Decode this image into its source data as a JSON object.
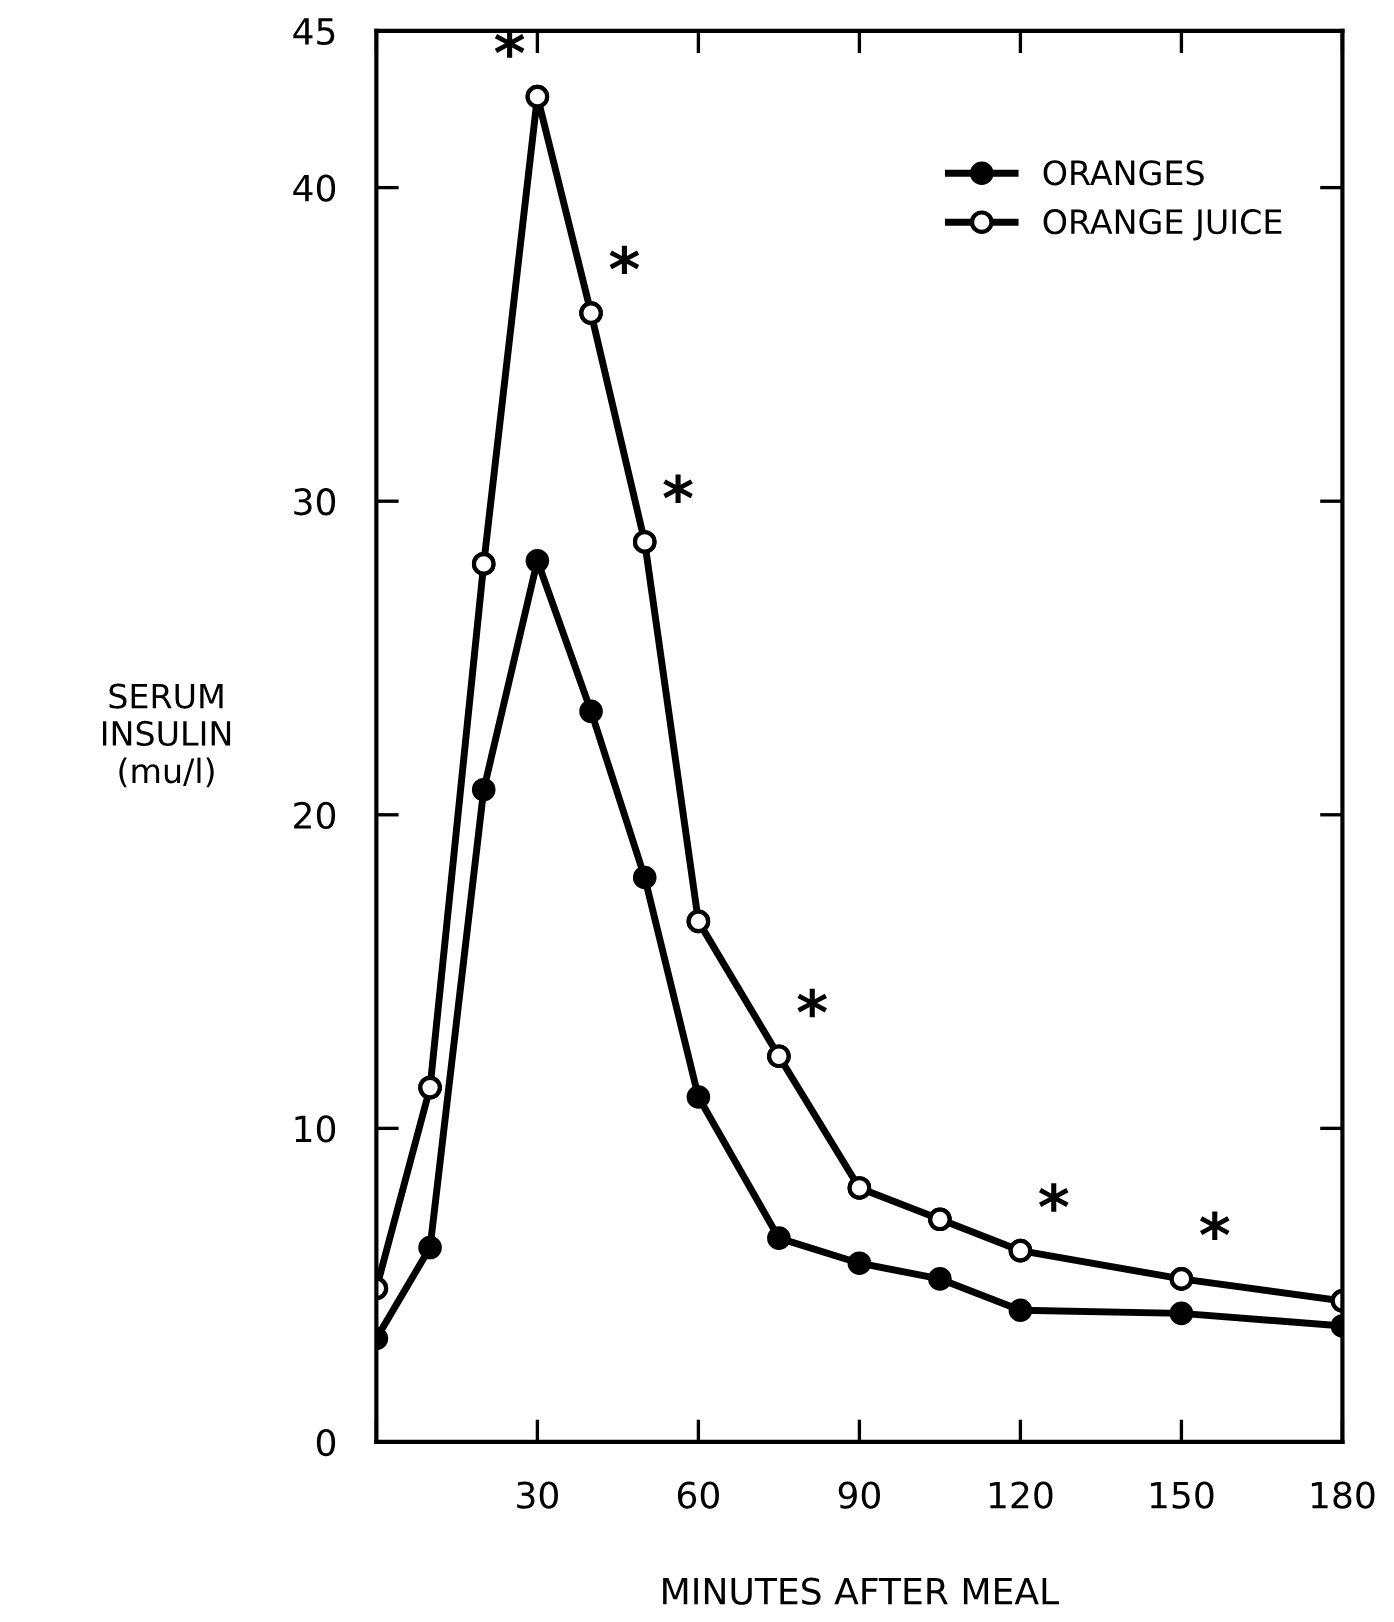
{
  "chart_data": {
    "type": "line",
    "xlabel": "MINUTES AFTER MEAL",
    "ylabel": "SERUM\nINSULIN\n(mu/l)",
    "x": [
      0,
      10,
      20,
      30,
      40,
      50,
      60,
      75,
      90,
      105,
      120,
      150,
      180
    ],
    "series": [
      {
        "name": "ORANGES",
        "color": "#000000",
        "values": [
          3.3,
          6.2,
          20.8,
          28.1,
          23.3,
          18.0,
          11.0,
          6.5,
          5.7,
          5.2,
          4.2,
          4.1,
          3.7
        ]
      },
      {
        "name": "ORANGE JUICE",
        "color": "#000000",
        "colors": [
          "#ffffff",
          "#ffffff",
          "#ffffff",
          "#ffffff",
          "#ffffff",
          "#ffffff",
          "#ffffff",
          "#ffffff",
          "#ffffff",
          "#ffffff",
          "#ffffff",
          "#ffffff",
          "#ffffff"
        ],
        "values": [
          4.9,
          11.3,
          28.0,
          42.9,
          36.0,
          28.7,
          16.6,
          12.3,
          8.1,
          7.1,
          6.1,
          5.2,
          4.5
        ]
      }
    ],
    "xlim": [
      0,
      180
    ],
    "xticks": [
      {
        "value": 0,
        "label": null
      },
      30,
      60,
      90,
      120,
      150,
      180
    ],
    "ylim": [
      0,
      45
    ],
    "yticks": [
      0,
      10,
      20,
      30,
      40,
      45
    ],
    "marker": "circle",
    "line_style": "solid",
    "grid": false,
    "legend": "top right",
    "annotations": [
      {
        "text": "*",
        "x": 30,
        "y": 42.9
      },
      {
        "text": "*",
        "x": 40,
        "y": 36.0
      },
      {
        "text": "*",
        "x": 50,
        "y": 28.7
      },
      {
        "text": "*",
        "x": 75,
        "y": 12.3
      },
      {
        "text": "*",
        "x": 120,
        "y": 6.1
      },
      {
        "text": "*",
        "x": 150,
        "y": 5.2
      }
    ]
  }
}
